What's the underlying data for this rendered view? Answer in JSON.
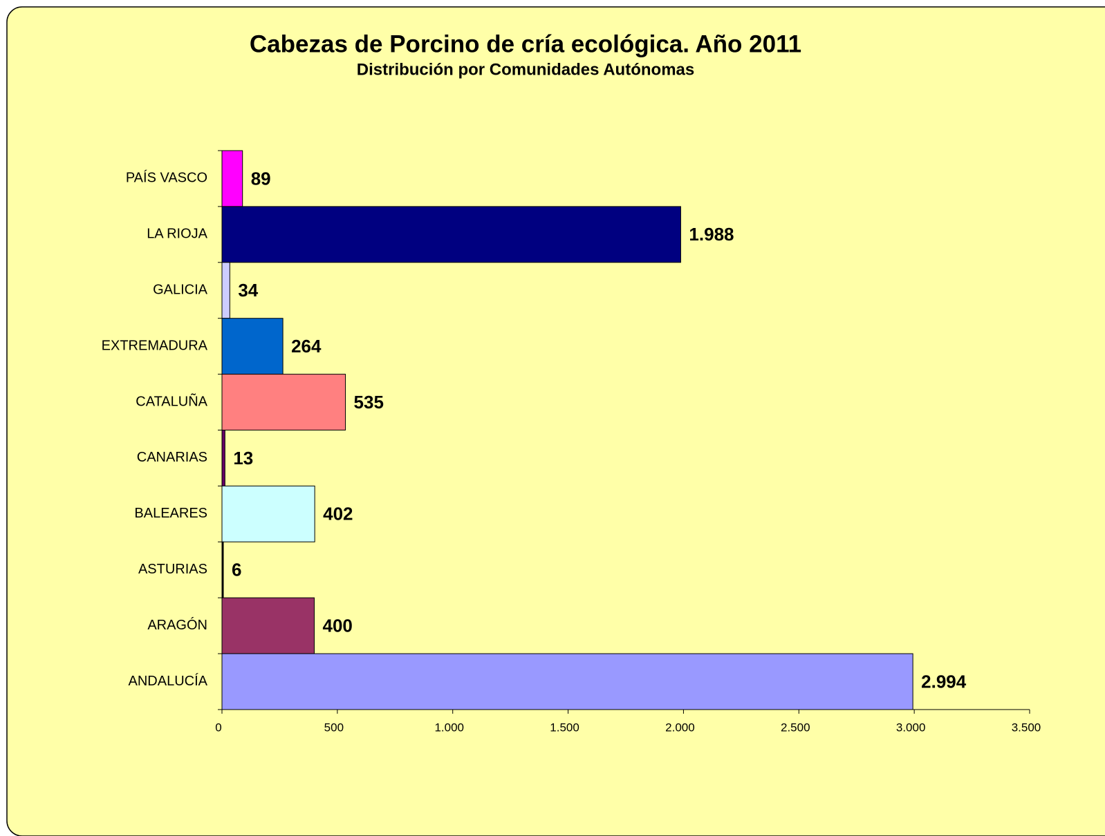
{
  "chart_data": {
    "type": "bar",
    "orientation": "horizontal",
    "title": "Cabezas de Porcino de cría ecológica. Año 2011",
    "subtitle": "Distribución por Comunidades Autónomas",
    "categories": [
      "PAÍS VASCO",
      "LA RIOJA",
      "GALICIA",
      "EXTREMADURA",
      "CATALUÑA",
      "CANARIAS",
      "BALEARES",
      "ASTURIAS",
      "ARAGÓN",
      "ANDALUCÍA"
    ],
    "values": [
      89,
      1988,
      34,
      264,
      535,
      13,
      402,
      6,
      400,
      2994
    ],
    "value_labels": [
      "89",
      "1.988",
      "34",
      "264",
      "535",
      "13",
      "402",
      "6",
      "400",
      "2.994"
    ],
    "colors": [
      "#ff00ff",
      "#000080",
      "#ccccff",
      "#0066cc",
      "#ff8080",
      "#660066",
      "#ccffff",
      "#000000",
      "#993366",
      "#9999ff"
    ],
    "xlim": [
      0,
      3500
    ],
    "xticks": [
      0,
      500,
      {
        "value": 1000,
        "label": "1.000"
      },
      {
        "value": 1500,
        "label": "1.500"
      },
      {
        "value": 2000,
        "label": "2.000"
      },
      {
        "value": 2500,
        "label": "2.500"
      },
      {
        "value": 3000,
        "label": "3.000"
      },
      {
        "value": 3500,
        "label": "3.500"
      }
    ]
  }
}
